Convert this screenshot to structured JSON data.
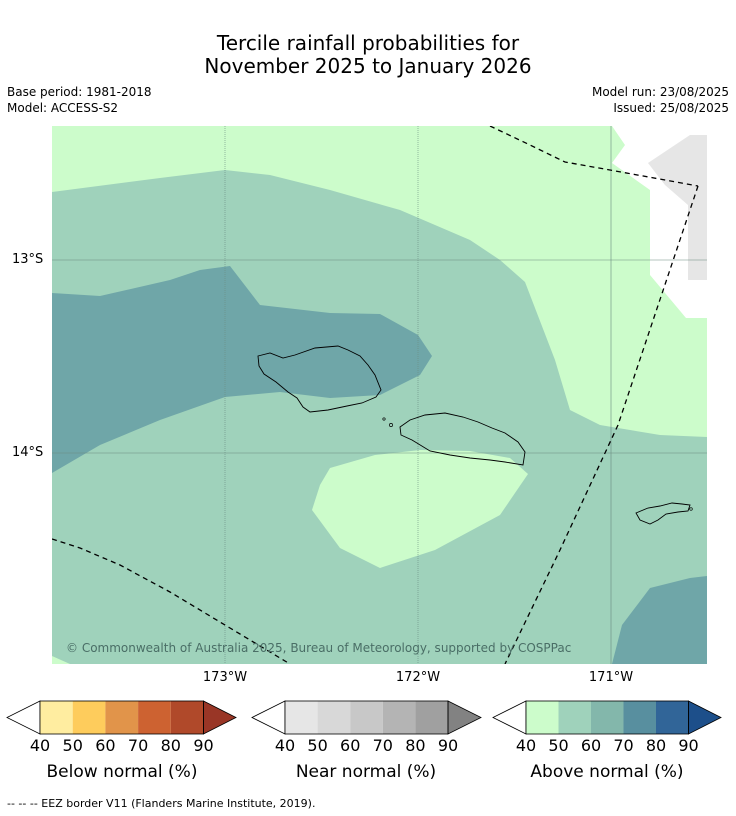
{
  "title": {
    "line1": "Tercile rainfall probabilities for",
    "line2": "November 2025 to January 2026"
  },
  "meta": {
    "base_period": "Base period: 1981-2018",
    "model": "Model: ACCESS-S2",
    "model_run": "Model run: 23/08/2025",
    "issued": "Issued: 25/08/2025"
  },
  "map": {
    "lat_labels": [
      "13°S",
      "14°S"
    ],
    "lon_labels": [
      "173°W",
      "172°W",
      "171°W"
    ],
    "copyright": "© Commonwealth of Australia 2025, Bureau of Meteorology, supported by COSPPac"
  },
  "colorbars": [
    {
      "name": "below",
      "label": "Below normal (%)",
      "ticks": [
        "40",
        "50",
        "60",
        "70",
        "80",
        "90"
      ],
      "colors": [
        "#ffffff",
        "#ffeda0",
        "#fecc5c",
        "#e1944a",
        "#cd6231",
        "#b0492a",
        "#993626"
      ]
    },
    {
      "name": "near",
      "label": "Near normal (%)",
      "ticks": [
        "40",
        "50",
        "60",
        "70",
        "80",
        "90"
      ],
      "colors": [
        "#ffffff",
        "#e6e6e6",
        "#d8d8d8",
        "#c8c8c8",
        "#b4b4b4",
        "#a0a0a0",
        "#828282"
      ]
    },
    {
      "name": "above",
      "label": "Above normal (%)",
      "ticks": [
        "40",
        "50",
        "60",
        "70",
        "80",
        "90"
      ],
      "colors": [
        "#ffffff",
        "#ccfccb",
        "#9fd2bb",
        "#83b7ab",
        "#588f9f",
        "#316598",
        "#1d4f8a"
      ]
    }
  ],
  "footnote": "-- -- -- EEZ border V11 (Flanders Marine Institute, 2019)."
}
